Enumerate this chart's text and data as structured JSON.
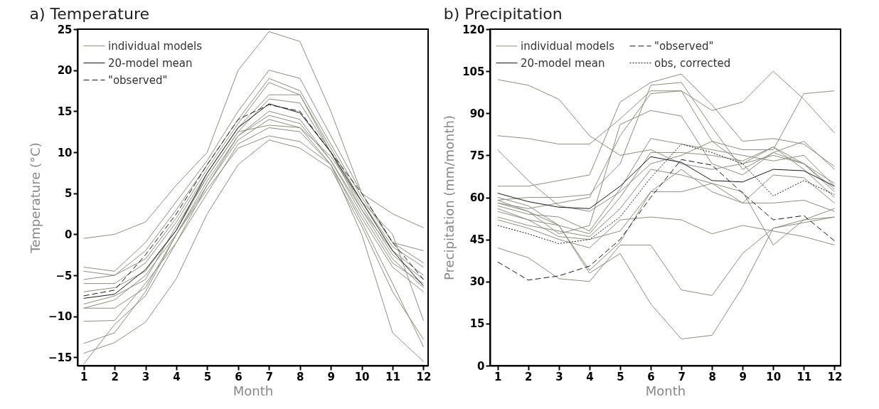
{
  "chart_data": [
    {
      "type": "line",
      "title": "a)  Temperature",
      "xlabel": "Month",
      "ylabel": "Temperature  (°C)",
      "x": [
        1,
        2,
        3,
        4,
        5,
        6,
        7,
        8,
        9,
        10,
        11,
        12
      ],
      "xlim": [
        0.8,
        12.15
      ],
      "xticks": [
        1,
        2,
        3,
        4,
        5,
        6,
        7,
        8,
        9,
        10,
        11,
        12
      ],
      "ylim": [
        -16,
        25
      ],
      "yticks": [
        -15,
        -10,
        -5,
        0,
        5,
        10,
        15,
        20,
        25
      ],
      "legend": "top left",
      "grid": false,
      "marker": "none",
      "series": [
        {
          "name": "individual models",
          "color": "#8e8e82",
          "line_style": "solid",
          "values": [
            -0.5,
            0,
            1.5,
            6,
            10,
            20,
            24.7,
            23.5,
            15,
            5,
            2.5,
            0.8
          ]
        },
        {
          "color": "#8e8e82",
          "line_style": "solid",
          "values": [
            -4,
            -4.5,
            -1,
            4,
            9,
            15,
            20,
            19,
            12,
            5,
            -1,
            -2
          ]
        },
        {
          "color": "#8e8e82",
          "line_style": "solid",
          "values": [
            -4.5,
            -5,
            -2,
            3,
            8.5,
            14,
            19,
            17.5,
            11,
            4.5,
            -1,
            -3.5
          ]
        },
        {
          "color": "#8e8e82",
          "line_style": "solid",
          "values": [
            -5.5,
            -5,
            -3,
            2,
            8,
            13.5,
            18.5,
            17,
            10.5,
            4,
            -1.5,
            -4
          ]
        },
        {
          "color": "#8e8e82",
          "line_style": "solid",
          "values": [
            -6,
            -6,
            -3.5,
            1.5,
            7.5,
            13,
            17,
            17,
            10,
            3,
            -2,
            -5
          ]
        },
        {
          "color": "#8e8e82",
          "line_style": "solid",
          "values": [
            -7,
            -6.5,
            -4.5,
            0.5,
            7,
            12.5,
            16.5,
            16,
            10,
            3.5,
            -2.5,
            -5.5
          ]
        },
        {
          "color": "#8e8e82",
          "line_style": "solid",
          "values": [
            -9,
            -8,
            -5,
            0,
            6.5,
            12,
            15,
            14,
            9,
            3,
            -3,
            -6.5
          ]
        },
        {
          "color": "#8e8e82",
          "line_style": "solid",
          "values": [
            -10.6,
            -10.5,
            -6,
            -1,
            6,
            12,
            14.5,
            13.5,
            9,
            2.5,
            -3.5,
            -6
          ]
        },
        {
          "color": "#8e8e82",
          "line_style": "solid",
          "values": [
            -13.3,
            -12,
            -7,
            0,
            6,
            11.5,
            14,
            13,
            8.5,
            2,
            -4,
            -7
          ]
        },
        {
          "color": "#8e8e82",
          "line_style": "solid",
          "values": [
            -14.5,
            -13.2,
            -10.7,
            -5.4,
            2.5,
            8.5,
            11.5,
            10.5,
            8,
            1,
            -7,
            -12.8
          ]
        },
        {
          "color": "#8e8e82",
          "line_style": "solid",
          "values": [
            -15.8,
            -11,
            -7.5,
            -1,
            5,
            11,
            13,
            12.5,
            8.5,
            1.5,
            -6,
            -13.7
          ]
        },
        {
          "color": "#8e8e82",
          "line_style": "solid",
          "values": [
            -9,
            -9,
            -6.5,
            0,
            5.5,
            10.5,
            12,
            11.3,
            8.5,
            0,
            -12,
            -15.5
          ]
        },
        {
          "color": "#8e8e82",
          "line_style": "solid",
          "values": [
            -8.5,
            -7.5,
            -5.5,
            1,
            7,
            12.5,
            13.3,
            13,
            9.5,
            4,
            0,
            -10.5
          ]
        },
        {
          "name": "20-model mean",
          "color": "#1a1a1a",
          "line_style": "solid",
          "values": [
            -7.8,
            -7.3,
            -4.3,
            0.5,
            7.5,
            13,
            15.9,
            14.8,
            10,
            4,
            -2,
            -6.3
          ]
        },
        {
          "name": "\"observed\"",
          "color": "#1a1a1a",
          "line_style": "dashed",
          "values": [
            -7.5,
            -6.8,
            -2.5,
            2.5,
            8.5,
            14,
            15.8,
            15,
            10,
            5,
            -1,
            -5.5
          ]
        }
      ]
    },
    {
      "type": "line",
      "title": "b)  Precipitation",
      "xlabel": "Month",
      "ylabel": "Precipitation  (mm/month)",
      "x": [
        1,
        2,
        3,
        4,
        5,
        6,
        7,
        8,
        9,
        10,
        11,
        12
      ],
      "xlim": [
        0.75,
        12.2
      ],
      "xticks": [
        1,
        2,
        3,
        4,
        5,
        6,
        7,
        8,
        9,
        10,
        11,
        12
      ],
      "ylim": [
        0,
        120
      ],
      "yticks": [
        0,
        15,
        30,
        45,
        60,
        75,
        90,
        105,
        120
      ],
      "legend": "top left",
      "grid": false,
      "marker": "none",
      "series": [
        {
          "name": "individual models",
          "color": "#8e8e82",
          "line_style": "solid",
          "values": [
            102,
            100,
            95,
            82,
            75,
            77,
            72,
            70,
            72,
            75,
            72,
            63
          ]
        },
        {
          "color": "#8e8e82",
          "line_style": "solid",
          "values": [
            82,
            81,
            79,
            79,
            88,
            98,
            98,
            91,
            94,
            105,
            95,
            83
          ]
        },
        {
          "color": "#8e8e82",
          "line_style": "solid",
          "values": [
            77,
            66,
            57,
            55,
            62,
            72,
            75,
            80,
            77,
            77,
            97,
            98
          ]
        },
        {
          "color": "#8e8e82",
          "line_style": "solid",
          "values": [
            64,
            64,
            66,
            68,
            94,
            101,
            104,
            93,
            80,
            81,
            79,
            71
          ]
        },
        {
          "color": "#8e8e82",
          "line_style": "solid",
          "values": [
            59,
            60,
            60,
            61,
            72,
            100,
            101,
            85,
            70,
            76,
            80,
            70
          ]
        },
        {
          "color": "#8e8e82",
          "line_style": "solid",
          "values": [
            58,
            56,
            58,
            60,
            82,
            97,
            98,
            80,
            72,
            78,
            72,
            65
          ]
        },
        {
          "color": "#8e8e82",
          "line_style": "solid",
          "values": [
            59,
            55,
            47,
            50,
            86,
            91,
            89,
            72,
            68,
            76,
            72,
            62
          ]
        },
        {
          "color": "#8e8e82",
          "line_style": "solid",
          "values": [
            57,
            54,
            53,
            48,
            63,
            81,
            79,
            77,
            75,
            73,
            75,
            64
          ]
        },
        {
          "color": "#8e8e82",
          "line_style": "solid",
          "values": [
            55,
            52,
            50,
            47,
            60,
            76,
            76,
            75,
            73,
            78,
            70,
            60
          ]
        },
        {
          "color": "#8e8e82",
          "line_style": "solid",
          "values": [
            53,
            50,
            48,
            46,
            56,
            70,
            68,
            65,
            58,
            58,
            59,
            55
          ]
        },
        {
          "color": "#8e8e82",
          "line_style": "solid",
          "values": [
            52,
            49,
            45,
            42,
            52,
            53,
            52,
            47,
            50,
            48,
            46,
            43
          ]
        },
        {
          "color": "#8e8e82",
          "line_style": "solid",
          "values": [
            58,
            55,
            50,
            33,
            40,
            22,
            9.5,
            10.8,
            28,
            49,
            52,
            53
          ]
        },
        {
          "color": "#8e8e82",
          "line_style": "solid",
          "values": [
            42,
            38.5,
            31,
            30,
            43,
            43,
            27,
            25,
            40,
            49,
            51,
            53
          ]
        },
        {
          "color": "#8e8e82",
          "line_style": "solid",
          "values": [
            60,
            57,
            50,
            34,
            44,
            62,
            62,
            65,
            62,
            43,
            52,
            56
          ]
        },
        {
          "color": "#8e8e82",
          "line_style": "solid",
          "values": [
            56,
            52,
            46,
            45,
            48,
            62,
            70,
            62,
            58,
            68,
            67,
            58
          ]
        },
        {
          "name": "20-model mean",
          "color": "#1a1a1a",
          "line_style": "solid",
          "values": [
            61.5,
            58.5,
            56.5,
            56,
            64,
            74.5,
            72.5,
            66,
            65.5,
            70,
            69.5,
            64
          ]
        },
        {
          "name": "\"observed\"",
          "color": "#1a1a1a",
          "line_style": "dashed",
          "values": [
            37,
            30.5,
            32,
            35.5,
            45,
            60,
            73.5,
            71.5,
            61.5,
            52,
            53.5,
            44.5
          ]
        },
        {
          "name": "obs, corrected",
          "color": "#1a1a1a",
          "line_style": "dotted",
          "values": [
            50,
            47,
            43.5,
            45,
            53,
            67,
            79,
            76,
            72,
            60.5,
            66,
            61
          ]
        }
      ]
    }
  ]
}
